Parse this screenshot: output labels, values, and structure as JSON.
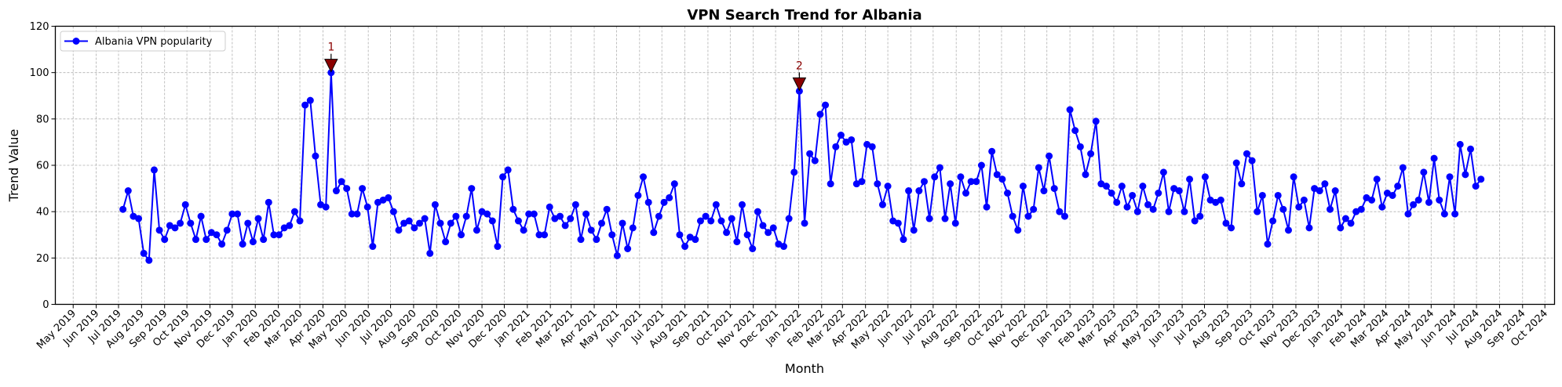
{
  "chart_data": {
    "type": "line",
    "title": "VPN Search Trend for Albania",
    "xlabel": "Month",
    "ylabel": "Trend Value",
    "ylim": [
      0,
      120
    ],
    "yticks": [
      0,
      20,
      40,
      60,
      80,
      100,
      120
    ],
    "xlim": [
      "2019-04-07",
      "2024-10-14"
    ],
    "xtick_labels": [
      "May 2019",
      "Jun 2019",
      "Jul 2019",
      "Aug 2019",
      "Sep 2019",
      "Oct 2019",
      "Nov 2019",
      "Dec 2019",
      "Jan 2020",
      "Feb 2020",
      "Mar 2020",
      "Apr 2020",
      "May 2020",
      "Jun 2020",
      "Jul 2020",
      "Aug 2020",
      "Sep 2020",
      "Oct 2020",
      "Nov 2020",
      "Dec 2020",
      "Jan 2021",
      "Feb 2021",
      "Mar 2021",
      "Apr 2021",
      "May 2021",
      "Jun 2021",
      "Jul 2021",
      "Aug 2021",
      "Sep 2021",
      "Oct 2021",
      "Nov 2021",
      "Dec 2021",
      "Jan 2022",
      "Feb 2022",
      "Mar 2022",
      "Apr 2022",
      "May 2022",
      "Jun 2022",
      "Jul 2022",
      "Aug 2022",
      "Sep 2022",
      "Oct 2022",
      "Nov 2022",
      "Dec 2022",
      "Jan 2023",
      "Feb 2023",
      "Mar 2023",
      "Apr 2023",
      "May 2023",
      "Jun 2023",
      "Jul 2023",
      "Aug 2023",
      "Sep 2023",
      "Oct 2023",
      "Nov 2023",
      "Dec 2023",
      "Jan 2024",
      "Feb 2024",
      "Mar 2024",
      "Apr 2024",
      "May 2024",
      "Jun 2024",
      "Jul 2024",
      "Aug 2024",
      "Sep 2024",
      "Oct 2024"
    ],
    "grid": true,
    "legend": "top-left",
    "series": [
      {
        "name": "Albania VPN popularity",
        "color": "#0000ff",
        "marker": "circle",
        "x": [
          "2019-07-07",
          "2019-07-14",
          "2019-07-21",
          "2019-07-28",
          "2019-08-04",
          "2019-08-11",
          "2019-08-18",
          "2019-08-25",
          "2019-09-01",
          "2019-09-08",
          "2019-09-15",
          "2019-09-22",
          "2019-09-29",
          "2019-10-06",
          "2019-10-13",
          "2019-10-20",
          "2019-10-27",
          "2019-11-03",
          "2019-11-10",
          "2019-11-17",
          "2019-11-24",
          "2019-12-01",
          "2019-12-08",
          "2019-12-15",
          "2019-12-22",
          "2019-12-29",
          "2020-01-05",
          "2020-01-12",
          "2020-01-19",
          "2020-01-26",
          "2020-02-02",
          "2020-02-09",
          "2020-02-16",
          "2020-02-23",
          "2020-03-01",
          "2020-03-08",
          "2020-03-15",
          "2020-03-22",
          "2020-03-29",
          "2020-04-05",
          "2020-04-12",
          "2020-04-19",
          "2020-04-26",
          "2020-05-03",
          "2020-05-10",
          "2020-05-17",
          "2020-05-24",
          "2020-05-31",
          "2020-06-07",
          "2020-06-14",
          "2020-06-21",
          "2020-06-28",
          "2020-07-05",
          "2020-07-12",
          "2020-07-19",
          "2020-07-26",
          "2020-08-02",
          "2020-08-09",
          "2020-08-16",
          "2020-08-23",
          "2020-08-30",
          "2020-09-06",
          "2020-09-13",
          "2020-09-20",
          "2020-09-27",
          "2020-10-04",
          "2020-10-11",
          "2020-10-18",
          "2020-10-25",
          "2020-11-01",
          "2020-11-08",
          "2020-11-15",
          "2020-11-22",
          "2020-11-29",
          "2020-12-06",
          "2020-12-13",
          "2020-12-20",
          "2020-12-27",
          "2021-01-03",
          "2021-01-10",
          "2021-01-17",
          "2021-01-24",
          "2021-01-31",
          "2021-02-07",
          "2021-02-14",
          "2021-02-21",
          "2021-02-28",
          "2021-03-07",
          "2021-03-14",
          "2021-03-21",
          "2021-03-28",
          "2021-04-04",
          "2021-04-11",
          "2021-04-18",
          "2021-04-25",
          "2021-05-02",
          "2021-05-09",
          "2021-05-16",
          "2021-05-23",
          "2021-05-30",
          "2021-06-06",
          "2021-06-13",
          "2021-06-20",
          "2021-06-27",
          "2021-07-04",
          "2021-07-11",
          "2021-07-18",
          "2021-07-25",
          "2021-08-01",
          "2021-08-08",
          "2021-08-15",
          "2021-08-22",
          "2021-08-29",
          "2021-09-05",
          "2021-09-12",
          "2021-09-19",
          "2021-09-26",
          "2021-10-03",
          "2021-10-10",
          "2021-10-17",
          "2021-10-24",
          "2021-10-31",
          "2021-11-07",
          "2021-11-14",
          "2021-11-21",
          "2021-11-28",
          "2021-12-05",
          "2021-12-12",
          "2021-12-19",
          "2021-12-26",
          "2022-01-02",
          "2022-01-09",
          "2022-01-16",
          "2022-01-23",
          "2022-01-30",
          "2022-02-06",
          "2022-02-13",
          "2022-02-20",
          "2022-02-27",
          "2022-03-06",
          "2022-03-13",
          "2022-03-20",
          "2022-03-27",
          "2022-04-03",
          "2022-04-10",
          "2022-04-17",
          "2022-04-24",
          "2022-05-01",
          "2022-05-08",
          "2022-05-15",
          "2022-05-22",
          "2022-05-29",
          "2022-06-05",
          "2022-06-12",
          "2022-06-19",
          "2022-06-26",
          "2022-07-03",
          "2022-07-10",
          "2022-07-17",
          "2022-07-24",
          "2022-07-31",
          "2022-08-07",
          "2022-08-14",
          "2022-08-21",
          "2022-08-28",
          "2022-09-04",
          "2022-09-11",
          "2022-09-18",
          "2022-09-25",
          "2022-10-02",
          "2022-10-09",
          "2022-10-16",
          "2022-10-23",
          "2022-10-30",
          "2022-11-06",
          "2022-11-13",
          "2022-11-20",
          "2022-11-27",
          "2022-12-04",
          "2022-12-11",
          "2022-12-18",
          "2022-12-25",
          "2023-01-01",
          "2023-01-08",
          "2023-01-15",
          "2023-01-22",
          "2023-01-29",
          "2023-02-05",
          "2023-02-12",
          "2023-02-19",
          "2023-02-26",
          "2023-03-05",
          "2023-03-12",
          "2023-03-19",
          "2023-03-26",
          "2023-04-02",
          "2023-04-09",
          "2023-04-16",
          "2023-04-23",
          "2023-04-30",
          "2023-05-07",
          "2023-05-14",
          "2023-05-21",
          "2023-05-28",
          "2023-06-04",
          "2023-06-11",
          "2023-06-18",
          "2023-06-25",
          "2023-07-02",
          "2023-07-09",
          "2023-07-16",
          "2023-07-23",
          "2023-07-30",
          "2023-08-06",
          "2023-08-13",
          "2023-08-20",
          "2023-08-27",
          "2023-09-03",
          "2023-09-10",
          "2023-09-17",
          "2023-09-24",
          "2023-10-01",
          "2023-10-08",
          "2023-10-15",
          "2023-10-22",
          "2023-10-29",
          "2023-11-05",
          "2023-11-12",
          "2023-11-19",
          "2023-11-26",
          "2023-12-03",
          "2023-12-10",
          "2023-12-17",
          "2023-12-24",
          "2023-12-31",
          "2024-01-07",
          "2024-01-14",
          "2024-01-21",
          "2024-01-28",
          "2024-02-04",
          "2024-02-11",
          "2024-02-18",
          "2024-02-25",
          "2024-03-03",
          "2024-03-10",
          "2024-03-17",
          "2024-03-24",
          "2024-03-31",
          "2024-04-07",
          "2024-04-14",
          "2024-04-21",
          "2024-04-28",
          "2024-05-05",
          "2024-05-12",
          "2024-05-19",
          "2024-05-26",
          "2024-06-02",
          "2024-06-09",
          "2024-06-16",
          "2024-06-23",
          "2024-06-30",
          "2024-07-07"
        ],
        "values": [
          41,
          49,
          38,
          37,
          22,
          19,
          58,
          32,
          28,
          34,
          33,
          35,
          43,
          35,
          28,
          38,
          28,
          31,
          30,
          26,
          32,
          39,
          39,
          26,
          35,
          27,
          37,
          28,
          44,
          30,
          30,
          33,
          34,
          40,
          36,
          86,
          88,
          64,
          43,
          42,
          100,
          49,
          53,
          50,
          39,
          39,
          50,
          42,
          25,
          44,
          45,
          46,
          40,
          32,
          35,
          36,
          33,
          35,
          37,
          22,
          43,
          35,
          27,
          35,
          38,
          30,
          38,
          50,
          32,
          40,
          39,
          36,
          25,
          55,
          58,
          41,
          36,
          32,
          39,
          39,
          30,
          30,
          42,
          37,
          38,
          34,
          37,
          43,
          28,
          39,
          32,
          28,
          35,
          41,
          30,
          21,
          35,
          24,
          33,
          47,
          55,
          44,
          31,
          38,
          44,
          46,
          52,
          30,
          25,
          29,
          28,
          36,
          38,
          36,
          43,
          36,
          31,
          37,
          27,
          43,
          30,
          24,
          40,
          34,
          31,
          33,
          26,
          25,
          37,
          57,
          92,
          35,
          65,
          62,
          82,
          86,
          52,
          68,
          73,
          70,
          71,
          52,
          53,
          69,
          68,
          52,
          43,
          51,
          36,
          35,
          28,
          49,
          32,
          49,
          53,
          37,
          55,
          59,
          37,
          52,
          35,
          55,
          48,
          53,
          53,
          60,
          42,
          66,
          56,
          54,
          48,
          38,
          32,
          51,
          38,
          41,
          59,
          49,
          64,
          50,
          40,
          38,
          84,
          75,
          68,
          56,
          65,
          79,
          52,
          51,
          48,
          44,
          51,
          42,
          47,
          40,
          51,
          43,
          41,
          48,
          57,
          40,
          50,
          49,
          40,
          54,
          36,
          38,
          55,
          45,
          44,
          45,
          35,
          33,
          61,
          52,
          65,
          62,
          40,
          47,
          26,
          36,
          47,
          41,
          32,
          55,
          42,
          45,
          33,
          50,
          49,
          52,
          41,
          49,
          33,
          37,
          35,
          40,
          41,
          46,
          45,
          54,
          42,
          48,
          47,
          51,
          59,
          39,
          43,
          45,
          57,
          44,
          63,
          45,
          39,
          55,
          39,
          69,
          56,
          67,
          51,
          54
        ]
      }
    ],
    "annotations": [
      {
        "label": "1",
        "x": "2020-04-12",
        "y": 100,
        "marker": "down-triangle",
        "color": "#8b0000"
      },
      {
        "label": "2",
        "x": "2022-01-02",
        "y": 92,
        "marker": "down-triangle",
        "color": "#8b0000"
      }
    ]
  }
}
